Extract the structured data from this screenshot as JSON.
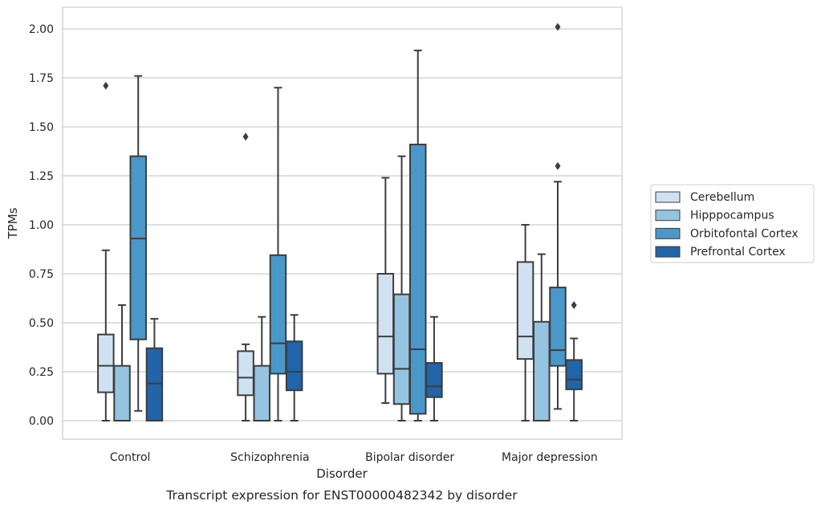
{
  "chart_data": {
    "type": "boxplot",
    "title": "",
    "caption": "Transcript expression for ENST00000482342 by disorder",
    "xlabel": "Disorder",
    "ylabel": "TPMs",
    "ylim": [
      -0.1,
      2.1
    ],
    "yticks": [
      0.0,
      0.25,
      0.5,
      0.75,
      1.0,
      1.25,
      1.5,
      1.75,
      2.0
    ],
    "ytick_labels": [
      "0.00",
      "0.25",
      "0.50",
      "0.75",
      "1.00",
      "1.25",
      "1.50",
      "1.75",
      "2.00"
    ],
    "grid": "horizontal",
    "legend_position": "right",
    "categories": [
      "Control",
      "Schizophrenia",
      "Bipolar disorder",
      "Major depression"
    ],
    "series": [
      {
        "name": "Cerebellum",
        "color": "#d0e1f2",
        "boxes": [
          {
            "whislo": 0.0,
            "q1": 0.145,
            "med": 0.28,
            "q3": 0.44,
            "whishi": 0.87,
            "fliers": [
              1.71
            ]
          },
          {
            "whislo": 0.0,
            "q1": 0.13,
            "med": 0.22,
            "q3": 0.355,
            "whishi": 0.39,
            "fliers": [
              1.45
            ]
          },
          {
            "whislo": 0.09,
            "q1": 0.24,
            "med": 0.43,
            "q3": 0.75,
            "whishi": 1.24,
            "fliers": []
          },
          {
            "whislo": 0.0,
            "q1": 0.315,
            "med": 0.43,
            "q3": 0.81,
            "whishi": 1.0,
            "fliers": []
          }
        ]
      },
      {
        "name": "Hipppocampus",
        "color": "#94c4df",
        "boxes": [
          {
            "whislo": 0.0,
            "q1": 0.0,
            "med": 0.0,
            "q3": 0.28,
            "whishi": 0.59,
            "fliers": []
          },
          {
            "whislo": 0.0,
            "q1": 0.0,
            "med": 0.0,
            "q3": 0.28,
            "whishi": 0.53,
            "fliers": []
          },
          {
            "whislo": 0.0,
            "q1": 0.085,
            "med": 0.265,
            "q3": 0.645,
            "whishi": 1.35,
            "fliers": []
          },
          {
            "whislo": 0.0,
            "q1": 0.0,
            "med": 0.0,
            "q3": 0.505,
            "whishi": 0.85,
            "fliers": []
          }
        ]
      },
      {
        "name": "Orbitofontal Cortex",
        "color": "#4a98c9",
        "boxes": [
          {
            "whislo": 0.05,
            "q1": 0.415,
            "med": 0.93,
            "q3": 1.35,
            "whishi": 1.76,
            "fliers": []
          },
          {
            "whislo": 0.0,
            "q1": 0.24,
            "med": 0.395,
            "q3": 0.845,
            "whishi": 1.7,
            "fliers": []
          },
          {
            "whislo": 0.0,
            "q1": 0.035,
            "med": 0.365,
            "q3": 1.41,
            "whishi": 1.89,
            "fliers": []
          },
          {
            "whislo": 0.06,
            "q1": 0.28,
            "med": 0.36,
            "q3": 0.68,
            "whishi": 1.22,
            "fliers": [
              1.3,
              2.01
            ]
          }
        ]
      },
      {
        "name": "Prefrontal Cortex",
        "color": "#2264a8",
        "boxes": [
          {
            "whislo": 0.0,
            "q1": 0.0,
            "med": 0.19,
            "q3": 0.37,
            "whishi": 0.52,
            "fliers": []
          },
          {
            "whislo": 0.0,
            "q1": 0.155,
            "med": 0.25,
            "q3": 0.405,
            "whishi": 0.54,
            "fliers": []
          },
          {
            "whislo": 0.0,
            "q1": 0.12,
            "med": 0.175,
            "q3": 0.295,
            "whishi": 0.53,
            "fliers": []
          },
          {
            "whislo": 0.0,
            "q1": 0.16,
            "med": 0.21,
            "q3": 0.31,
            "whishi": 0.42,
            "fliers": [
              0.59
            ]
          }
        ]
      }
    ]
  }
}
